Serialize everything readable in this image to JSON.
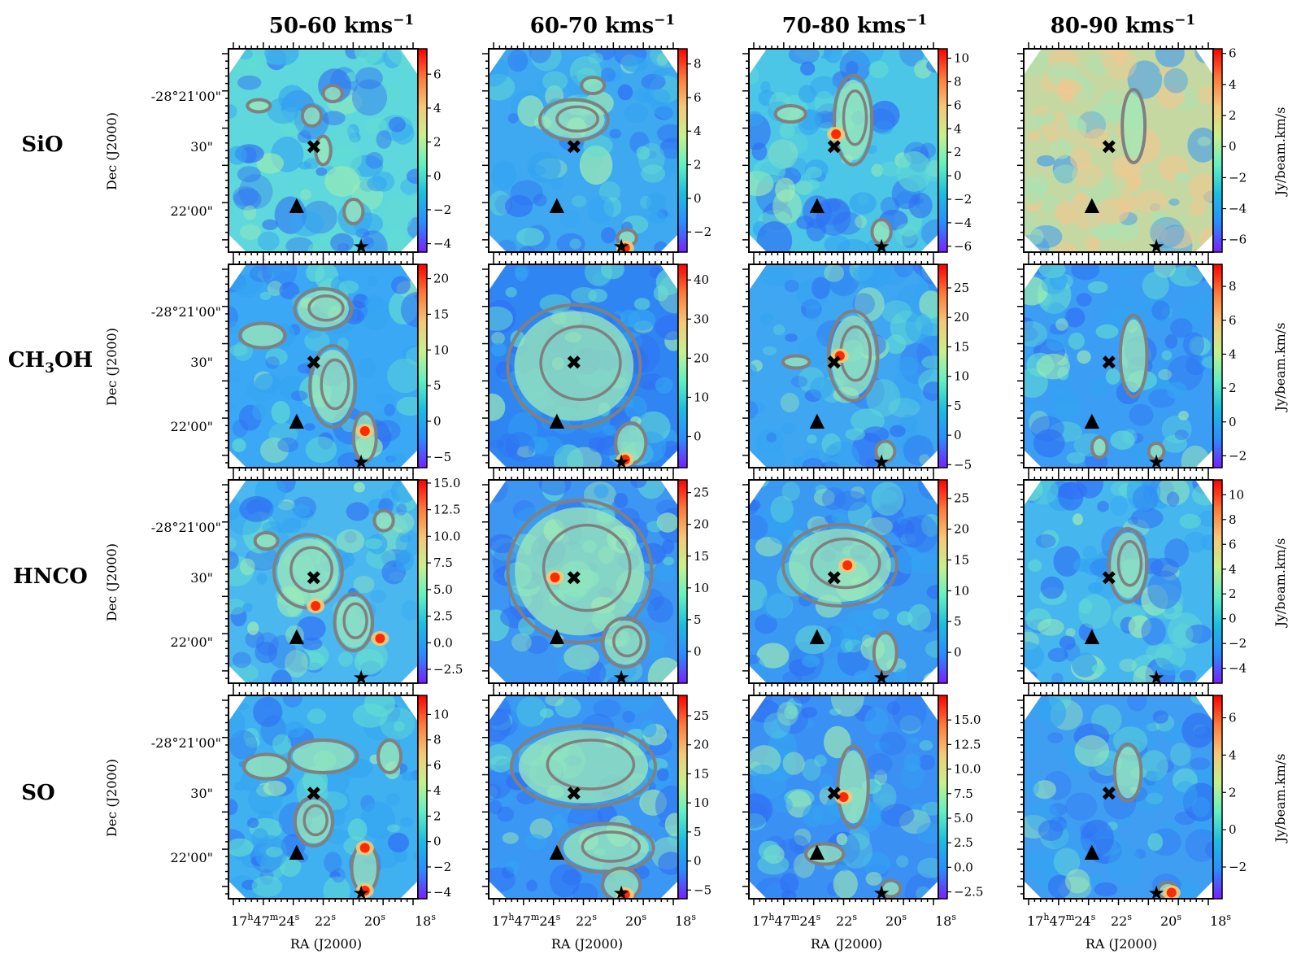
{
  "figure": {
    "velocity_channels": [
      {
        "pre": "50-60 kms",
        "sup": "−1"
      },
      {
        "pre": "60-70 kms",
        "sup": "−1"
      },
      {
        "pre": "70-80 kms",
        "sup": "−1"
      },
      {
        "pre": "80-90 kms",
        "sup": "−1"
      }
    ],
    "molecules": [
      {
        "main": "SiO",
        "sub": "",
        "rest": ""
      },
      {
        "main": "CH",
        "sub": "3",
        "rest": "OH"
      },
      {
        "main": "HNCO",
        "sub": "",
        "rest": ""
      },
      {
        "main": "SO",
        "sub": "",
        "rest": ""
      }
    ],
    "y_axis_label": "Dec (J2000)",
    "x_axis_label": "RA (J2000)",
    "y_tick_labels": [
      "-28°21'00\"",
      "30\"",
      "22'00\""
    ],
    "x_tick_labels": [
      {
        "base": "17",
        "sup": "h",
        "base2": "47",
        "sup2": "m",
        "base3": "24",
        "sup3": "s"
      },
      {
        "base": "22",
        "sup": "s"
      },
      {
        "base": "20",
        "sup": "s"
      },
      {
        "base": "18",
        "sup": "s"
      }
    ],
    "colorbar_label": "Jy/beam.km/s",
    "colormap": [
      "#7b1fff",
      "#2a8cff",
      "#1bbde0",
      "#62f0c0",
      "#c7f08c",
      "#f5c878",
      "#ff7a3a",
      "#ff0000"
    ],
    "contour_color": "#808080",
    "marker_symbols": {
      "cross": "✖",
      "triangle": "▲",
      "star": "★"
    }
  },
  "chart_data": [
    {
      "type": "heatmap",
      "molecule": "SiO",
      "velocity_range": "50-60 kms−1",
      "colorbar_ticks": [
        "-4",
        "-2",
        "0",
        "2",
        "4",
        "6"
      ],
      "colorbar_range": [
        -4.5,
        7.5
      ]
    },
    {
      "type": "heatmap",
      "molecule": "SiO",
      "velocity_range": "60-70 kms−1",
      "colorbar_ticks": [
        "-2",
        "0",
        "2",
        "4",
        "6",
        "8"
      ],
      "colorbar_range": [
        -3.2,
        8.9
      ]
    },
    {
      "type": "heatmap",
      "molecule": "SiO",
      "velocity_range": "70-80 kms−1",
      "colorbar_ticks": [
        "-6",
        "-4",
        "-2",
        "0",
        "2",
        "4",
        "6",
        "8",
        "10"
      ],
      "colorbar_range": [
        -6.5,
        10.8
      ]
    },
    {
      "type": "heatmap",
      "molecule": "SiO",
      "velocity_range": "80-90 kms−1",
      "colorbar_ticks": [
        "-6",
        "-4",
        "-2",
        "0",
        "2",
        "4",
        "6"
      ],
      "colorbar_range": [
        -6.8,
        6.3
      ]
    },
    {
      "type": "heatmap",
      "molecule": "CH3OH",
      "velocity_range": "50-60 kms−1",
      "colorbar_ticks": [
        "-5",
        "0",
        "5",
        "10",
        "15",
        "20"
      ],
      "colorbar_range": [
        -6.5,
        22
      ]
    },
    {
      "type": "heatmap",
      "molecule": "CH3OH",
      "velocity_range": "60-70 kms−1",
      "colorbar_ticks": [
        "0",
        "10",
        "20",
        "30",
        "40"
      ],
      "colorbar_range": [
        -8,
        44
      ]
    },
    {
      "type": "heatmap",
      "molecule": "CH3OH",
      "velocity_range": "70-80 kms−1",
      "colorbar_ticks": [
        "-5",
        "0",
        "5",
        "10",
        "15",
        "20",
        "25"
      ],
      "colorbar_range": [
        -5.5,
        29
      ]
    },
    {
      "type": "heatmap",
      "molecule": "CH3OH",
      "velocity_range": "80-90 kms−1",
      "colorbar_ticks": [
        "-2",
        "0",
        "2",
        "4",
        "6",
        "8"
      ],
      "colorbar_range": [
        -2.7,
        9.3
      ]
    },
    {
      "type": "heatmap",
      "molecule": "HNCO",
      "velocity_range": "50-60 kms−1",
      "colorbar_ticks": [
        "-2.5",
        "0.0",
        "2.5",
        "5.0",
        "7.5",
        "10.0",
        "12.5",
        "15.0"
      ],
      "colorbar_range": [
        -3.8,
        15.3
      ]
    },
    {
      "type": "heatmap",
      "molecule": "HNCO",
      "velocity_range": "60-70 kms−1",
      "colorbar_ticks": [
        "0",
        "5",
        "10",
        "15",
        "20",
        "25"
      ],
      "colorbar_range": [
        -5,
        27
      ]
    },
    {
      "type": "heatmap",
      "molecule": "HNCO",
      "velocity_range": "70-80 kms−1",
      "colorbar_ticks": [
        "0",
        "5",
        "10",
        "15",
        "20",
        "25"
      ],
      "colorbar_range": [
        -5,
        28
      ]
    },
    {
      "type": "heatmap",
      "molecule": "HNCO",
      "velocity_range": "80-90 kms−1",
      "colorbar_ticks": [
        "-4",
        "-2",
        "0",
        "2",
        "4",
        "6",
        "8",
        "10"
      ],
      "colorbar_range": [
        -5.2,
        11.2
      ]
    },
    {
      "type": "heatmap",
      "molecule": "SO",
      "velocity_range": "50-60 kms−1",
      "colorbar_ticks": [
        "-4",
        "-2",
        "0",
        "2",
        "4",
        "6",
        "8",
        "10"
      ],
      "colorbar_range": [
        -4.5,
        11.5
      ]
    },
    {
      "type": "heatmap",
      "molecule": "SO",
      "velocity_range": "60-70 kms−1",
      "colorbar_ticks": [
        "-5",
        "0",
        "5",
        "10",
        "15",
        "20",
        "25"
      ],
      "colorbar_range": [
        -6.5,
        28.5
      ]
    },
    {
      "type": "heatmap",
      "molecule": "SO",
      "velocity_range": "70-80 kms−1",
      "colorbar_ticks": [
        "-2.5",
        "0.0",
        "2.5",
        "5.0",
        "7.5",
        "10.0",
        "12.5",
        "15.0"
      ],
      "colorbar_range": [
        -3.2,
        17.5
      ]
    },
    {
      "type": "heatmap",
      "molecule": "SO",
      "velocity_range": "80-90 kms−1",
      "colorbar_ticks": [
        "-2",
        "0",
        "2",
        "4",
        "6"
      ],
      "colorbar_range": [
        -3.7,
        7.2
      ]
    }
  ]
}
